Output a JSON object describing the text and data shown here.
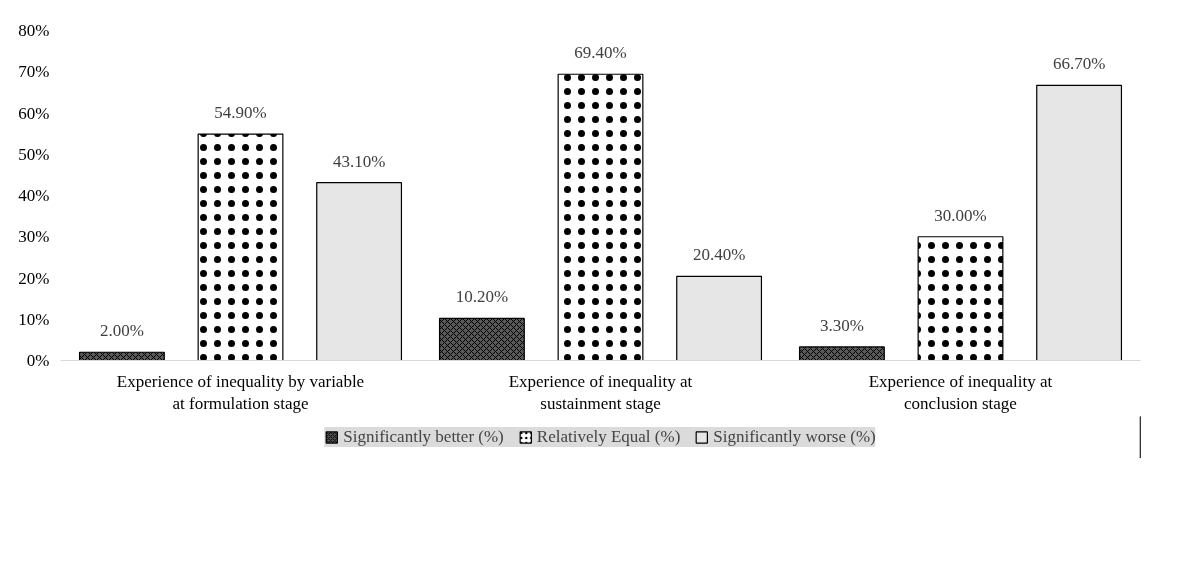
{
  "chart_data": {
    "type": "bar",
    "categories": [
      "Experience of inequality by variable at formulation stage",
      "Experience of inequality at sustainment stage",
      "Experience of inequality at conclusion stage"
    ],
    "series": [
      {
        "name": "Significantly better (%)",
        "color": "#595959",
        "values": [
          2.0,
          10.2,
          3.3
        ],
        "value_labels": [
          "2.00%",
          "10.20%",
          "3.30%"
        ]
      },
      {
        "name": "Relatively Equal (%)",
        "color": "#ffffff",
        "values": [
          54.9,
          69.4,
          30.0
        ],
        "value_labels": [
          "54.90%",
          "69.40%",
          "30.00%"
        ]
      },
      {
        "name": "Significantly worse (%)",
        "color": "#e6e6e6",
        "values": [
          43.1,
          20.4,
          66.7
        ],
        "value_labels": [
          "43.10%",
          "20.40%",
          "66.70%"
        ]
      }
    ],
    "ylim": [
      0,
      80
    ],
    "yticks": [
      {
        "value": 0,
        "label": "0%"
      },
      {
        "value": 10,
        "label": "10%"
      },
      {
        "value": 20,
        "label": "20%"
      },
      {
        "value": 30,
        "label": "30%"
      },
      {
        "value": 40,
        "label": "40%"
      },
      {
        "value": 50,
        "label": "50%"
      },
      {
        "value": 60,
        "label": "60%"
      },
      {
        "value": 70,
        "label": "70%"
      },
      {
        "value": 80,
        "label": "80%"
      }
    ],
    "grid": false,
    "legend": "bottom"
  }
}
